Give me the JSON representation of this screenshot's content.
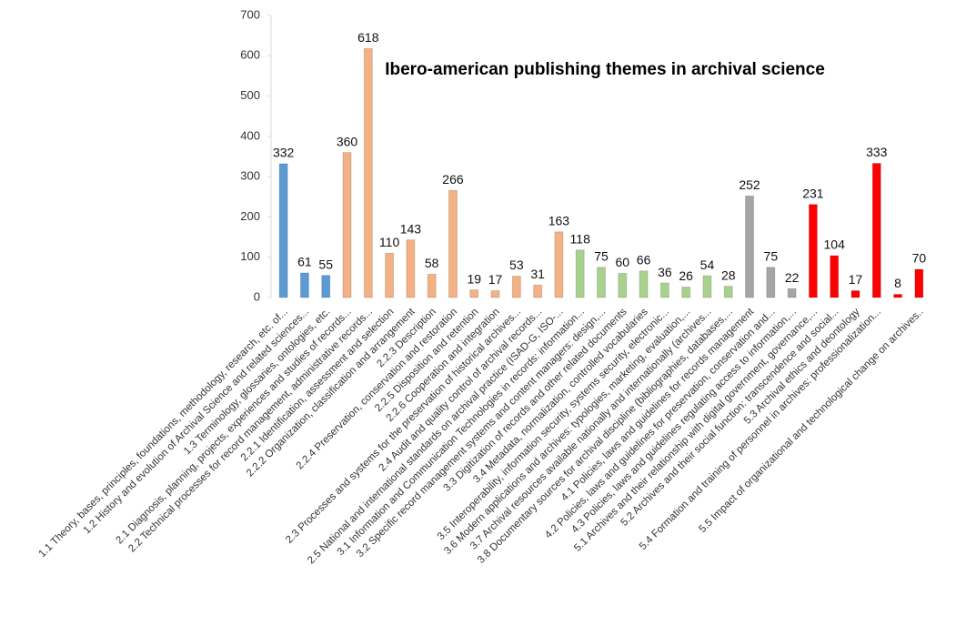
{
  "chart_data": {
    "type": "bar",
    "title": "Ibero-american publishing themes in archival science",
    "categories": [
      "1.1 Theory, bases, principles, foundations, methodology, research, etc. of...",
      "1.2 History and evolution of Archival Science and related sciences...",
      "1.3 Terminology, glossaries, ontologies, etc.",
      "2.1 Diagnosis, planning, projects, experiences and studies of records...",
      "2.2 Technical processes for record management, administrative records...",
      "2.2.1 Identification, assessment and selection",
      "2.2.2 Organization, classification and arrangement",
      "2.2.3 Description",
      "2.2.4 Preservation, conservation and restoration",
      "2.2.5 Disposition and retention",
      "2.2.6 Cooperation and integration",
      "2.3 Processes and systems for the preservation of historical archives...",
      "2.4 Audit and quality control of archival records...",
      "2.5 National and international standards on archival practice (ISAD-G, ISO-...",
      "3.1 Information and Communication Technologies in records: information...",
      "3.2 Specific record management systems and content managers: design,...",
      "3.3 Digitization of records and other related documents",
      "3.4 Metadata, normalization, controlled vocabularies",
      "3.5 Interoperability, information security, systems security, electronic...",
      "3.6 Modern applications and archives: typologies, marketing, evaluation,...",
      "3.7 Archival resources available nationally and internationally (archives...",
      "3.8 Documentary sources for archival discipline (bibliographies, databases,...",
      "4.1 Policies, laws and guidelines for records management",
      "4.2 Policies, laws and guidelines for preservation, conservation and...",
      "4.3 Policies, laws and guidelines regulating access to information,...",
      "5.1 Archives and their relationship with digital government, governance,...",
      "5.2 Archives and their social function: transcendence and social...",
      "5.3 Archival ethics and deontology",
      "5.4 Formation and training of personnel in archives: professionalization...",
      null,
      "5.5 Impact of organizational and technological change on archives.."
    ],
    "values": [
      332,
      61,
      55,
      360,
      618,
      110,
      143,
      58,
      266,
      19,
      17,
      53,
      31,
      163,
      118,
      75,
      60,
      66,
      36,
      26,
      54,
      28,
      252,
      75,
      22,
      231,
      104,
      17,
      333,
      8,
      70
    ],
    "colors": [
      "#5b9bd5",
      "#5b9bd5",
      "#5b9bd5",
      "#f4b183",
      "#f4b183",
      "#f4b183",
      "#f4b183",
      "#f4b183",
      "#f4b183",
      "#f4b183",
      "#f4b183",
      "#f4b183",
      "#f4b183",
      "#f4b183",
      "#a9d18e",
      "#a9d18e",
      "#a9d18e",
      "#a9d18e",
      "#a9d18e",
      "#a9d18e",
      "#a9d18e",
      "#a9d18e",
      "#a5a5a5",
      "#a5a5a5",
      "#a5a5a5",
      "#ff0000",
      "#ff0000",
      "#ff0000",
      "#ff0000",
      "#ff0000",
      "#ff0000"
    ],
    "ylim": [
      0,
      700
    ],
    "yticks": [
      0,
      100,
      200,
      300,
      400,
      500,
      600,
      700
    ],
    "grid": false
  }
}
